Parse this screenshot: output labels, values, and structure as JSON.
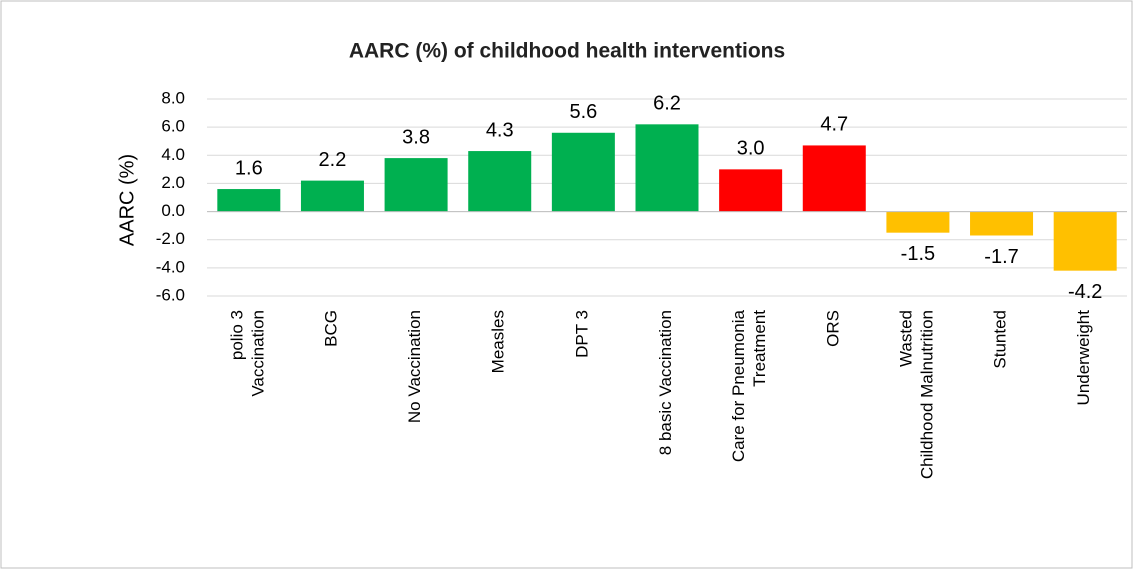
{
  "chart_data": {
    "type": "bar",
    "title": "AARC (%) of childhood health interventions",
    "y_label": "AARC (%)",
    "categories": [
      "polio 3\nVaccination",
      "BCG",
      "No Vaccination",
      "Measles",
      "DPT 3",
      "8 basic Vaccination",
      "Care for Pneumonia\nTreatment",
      "ORS",
      "Wasted\nChildhood Malnutrition",
      "Stunted",
      "Underweight"
    ],
    "values": [
      1.6,
      2.2,
      3.8,
      4.3,
      5.6,
      6.2,
      3.0,
      4.7,
      -1.5,
      -1.7,
      -4.2
    ],
    "value_labels": [
      "1.6",
      "2.2",
      "3.8",
      "4.3",
      "5.6",
      "6.2",
      "3.0",
      "4.7",
      "-1.5",
      "-1.7",
      "-4.2"
    ],
    "colors": [
      "#00b050",
      "#00b050",
      "#00b050",
      "#00b050",
      "#00b050",
      "#00b050",
      "#ff0000",
      "#ff0000",
      "#ffc000",
      "#ffc000",
      "#ffc000"
    ],
    "ylim": [
      -6,
      8
    ],
    "yticks": [
      {
        "value": -6,
        "label": "-6.0"
      },
      {
        "value": -4,
        "label": "-4.0"
      },
      {
        "value": -2,
        "label": "-2.0"
      },
      {
        "value": 0,
        "label": "0.0"
      },
      {
        "value": 2,
        "label": "2.0"
      },
      {
        "value": 4,
        "label": "4.0"
      },
      {
        "value": 6,
        "label": "6.0"
      },
      {
        "value": 8,
        "label": "8.0"
      }
    ],
    "grid": true
  }
}
